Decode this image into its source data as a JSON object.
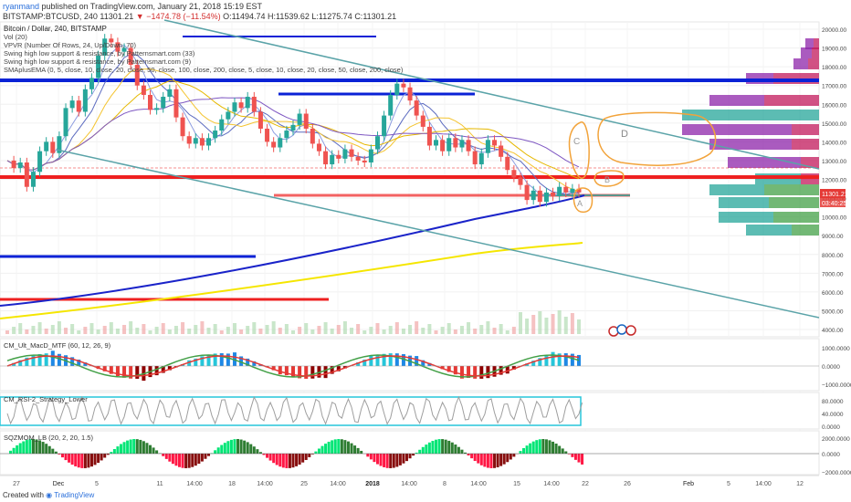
{
  "header": {
    "author": "ryanmand",
    "published": "published on TradingView.com, January 21, 2018 15:19 EST",
    "symbol": "BITSTAMP:BTCUSD, 240",
    "last": "11301.21",
    "change": "−1474.78 (−11.54%)",
    "open": "O:11494.74",
    "high": "H:11539.62",
    "low": "L:11275.74",
    "close": "C:11301.21"
  },
  "indicators": [
    "Bitcoin / Dollar, 240, BITSTAMP",
    "Vol (20)",
    "VPVR (Number Of Rows, 24, Up/Down, 70)",
    "Swing high low support & resistance, by Patternsmart.com (33)",
    "Swing high low support & resistance, by Patternsmart.com (9)",
    "SMAplusEMA (0, 5, close, 10, close, 20, close, 50, close, 100, close, 200, close, 5, close, 10, close, 20, close, 50, close, 200, close)"
  ],
  "chart_data": {
    "type": "line",
    "price_axis": [
      "20000.00",
      "19000.00",
      "18000.00",
      "17000.00",
      "16000.00",
      "15000.00",
      "14000.00",
      "13000.00",
      "12000.00",
      "11000.00",
      "10000.00",
      "9000.00",
      "8000.00",
      "7000.00",
      "6000.00",
      "5000.00",
      "4000.00"
    ],
    "price_last_label": "11301.21",
    "countdown_label": "03:40:25",
    "x_axis": [
      "27",
      "Dec",
      "5",
      "11",
      "14:00",
      "18",
      "14:00",
      "25",
      "14:00",
      "2018",
      "14:00",
      "8",
      "14:00",
      "15",
      "14:00",
      "22",
      "26",
      "Feb",
      "5",
      "14:00",
      "12"
    ],
    "price_series": [
      13000,
      12600,
      12900,
      11600,
      12400,
      13500,
      14000,
      13400,
      14300,
      15800,
      16200,
      15600,
      16800,
      17400,
      18600,
      19500,
      19300,
      18800,
      19000,
      18100,
      17000,
      16500,
      15700,
      15800,
      16400,
      16800,
      15300,
      14300,
      13900,
      14200,
      13800,
      14200,
      14600,
      15200,
      15600,
      16100,
      15800,
      16400,
      15600,
      14700,
      14000,
      13700,
      14200,
      14600,
      14900,
      15500,
      14700,
      13900,
      13500,
      12800,
      13300,
      13100,
      13600,
      13200,
      13000,
      12900,
      13600,
      14300,
      15400,
      16500,
      17100,
      16900,
      16200,
      15400,
      14800,
      13800,
      14100,
      13500,
      14200,
      13700,
      14100,
      13500,
      12800,
      13400,
      14100,
      13800,
      13200,
      12500,
      12100,
      11700,
      10900,
      11400,
      10800,
      11300,
      11100,
      11600,
      11300,
      11500,
      11301
    ],
    "annotations": [
      "A",
      "B",
      "C",
      "D"
    ],
    "macd": {
      "label": "CM_Ult_MacD_MTF (60, 12, 26, 9)",
      "axis": [
        "1000.0000",
        "0.0000",
        "−1000.0000"
      ]
    },
    "rsi": {
      "label": "CM_RSI-2_Strategy_Lower",
      "axis": [
        "80.0000",
        "40.0000",
        "0.0000"
      ]
    },
    "sqzmom": {
      "label": "SQZMOM_LB (20, 2, 20, 1.5)",
      "axis": [
        "2000.0000",
        "0.0000",
        "−2000.0000"
      ]
    }
  },
  "footer": {
    "created": "Created with",
    "brand": "TradingView"
  }
}
